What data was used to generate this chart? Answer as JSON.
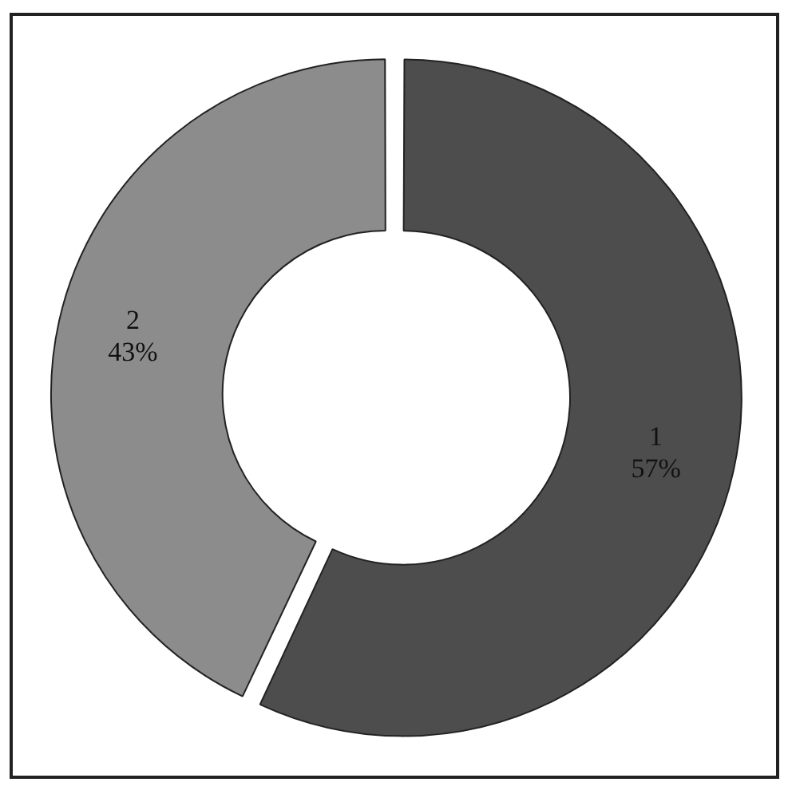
{
  "chart_data": {
    "type": "donut",
    "categories": [
      "1",
      "2"
    ],
    "values": [
      57,
      43
    ],
    "colors": [
      "#4d4d4d",
      "#8c8c8c"
    ],
    "value_labels": [
      "57%",
      "43%"
    ],
    "legend": false
  }
}
